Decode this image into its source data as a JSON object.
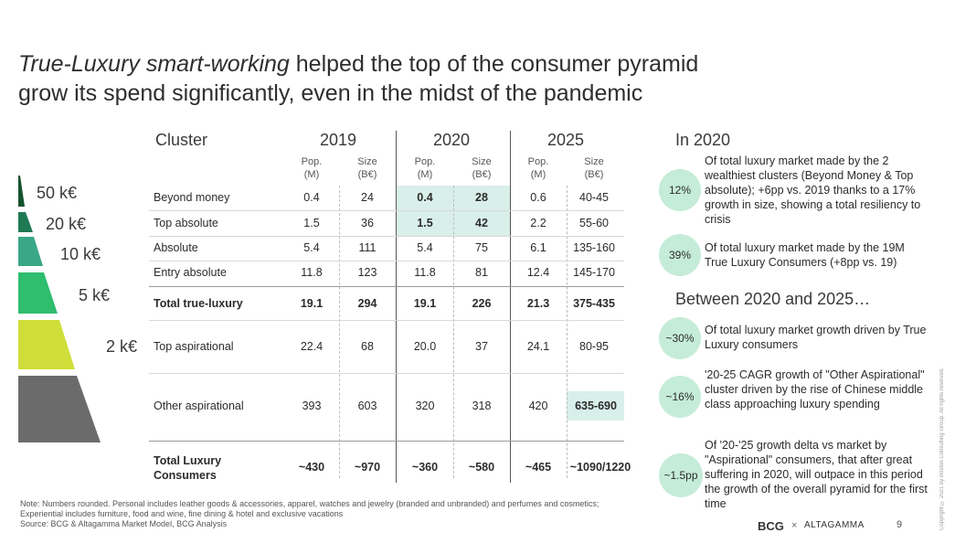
{
  "title": {
    "highlight": "True-Luxury smart-working",
    "rest_line1": " helped the top of the consumer pyramid",
    "line2": "grow its spend significantly, even in the midst of the pandemic"
  },
  "table": {
    "cluster_header": "Cluster",
    "years": [
      "2019",
      "2020",
      "2025"
    ],
    "pop_label": "Pop.",
    "pop_unit": "(M)",
    "size_label": "Size",
    "size_unit": "(B€)",
    "rows": [
      {
        "label": "Beyond money",
        "v": [
          "0.4",
          "24",
          "0.4",
          "28",
          "0.6",
          "40-45"
        ]
      },
      {
        "label": "Top absolute",
        "v": [
          "1.5",
          "36",
          "1.5",
          "42",
          "2.2",
          "55-60"
        ]
      },
      {
        "label": "Absolute",
        "v": [
          "5.4",
          "111",
          "5.4",
          "75",
          "6.1",
          "135-160"
        ]
      },
      {
        "label": "Entry absolute",
        "v": [
          "11.8",
          "123",
          "11.8",
          "81",
          "12.4",
          "145-170"
        ]
      },
      {
        "label": "Total true-luxury",
        "v": [
          "19.1",
          "294",
          "19.1",
          "226",
          "21.3",
          "375-435"
        ]
      },
      {
        "label": "Top aspirational",
        "v": [
          "22.4",
          "68",
          "20.0",
          "37",
          "24.1",
          "80-95"
        ]
      },
      {
        "label": "Other aspirational",
        "v": [
          "393",
          "603",
          "320",
          "318",
          "420",
          "635-690"
        ]
      },
      {
        "label_l1": "Total Luxury",
        "label_l2": "Consumers",
        "v": [
          "~430",
          "~970",
          "~360",
          "~580",
          "~465",
          "~1090/1220"
        ]
      }
    ]
  },
  "pyramid": {
    "labels": [
      "50 k€",
      "20 k€",
      "10 k€",
      "5 k€",
      "2 k€"
    ],
    "colors": [
      "#14532d",
      "#1f7a53",
      "#3aa887",
      "#2fbd6e",
      "#cfde3a",
      "#6b6b6b"
    ]
  },
  "right": {
    "header_2020": "In 2020",
    "header_2025": "Between 2020 and 2025…",
    "items": [
      {
        "badge": "12%",
        "text": "Of total luxury market made by the 2 wealthiest clusters (Beyond Money & Top absolute); +6pp vs. 2019 thanks to a 17% growth in size, showing a total resiliency to crisis"
      },
      {
        "badge": "39%",
        "text": "Of total luxury market made by the 19M True Luxury Consumers (+8pp vs. 19)"
      },
      {
        "badge": "~30%",
        "text": "Of total luxury market growth driven by True Luxury consumers"
      },
      {
        "badge": "~16%",
        "text": "'20-25 CAGR growth of \"Other Aspirational\" cluster driven by the rise of Chinese middle class approaching luxury spending"
      },
      {
        "badge": "~1.5pp",
        "text": "Of '20-'25 growth delta vs market by \"Aspirational\" consumers, that after great suffering in 2020, will outpace in this period the growth of the overall pyramid for the first time"
      }
    ]
  },
  "note": {
    "line1": "Note: Numbers rounded. Personal includes leather goods & accessories, apparel, watches and jewelry (branded and unbranded) and perfumes and cosmetics;",
    "line2": "Experiential includes furniture, food and wine, fine dining & hotel and exclusive vacations",
    "line3": "Source: BCG & Altagamma Market Model, BCG Analysis"
  },
  "footer": {
    "bcg": "BCG",
    "x": "×",
    "altagamma": "ALTAGAMMA",
    "page": "9",
    "copyright": "Copyright © 2021 by Boston Consulting Group. All rights reserved."
  }
}
